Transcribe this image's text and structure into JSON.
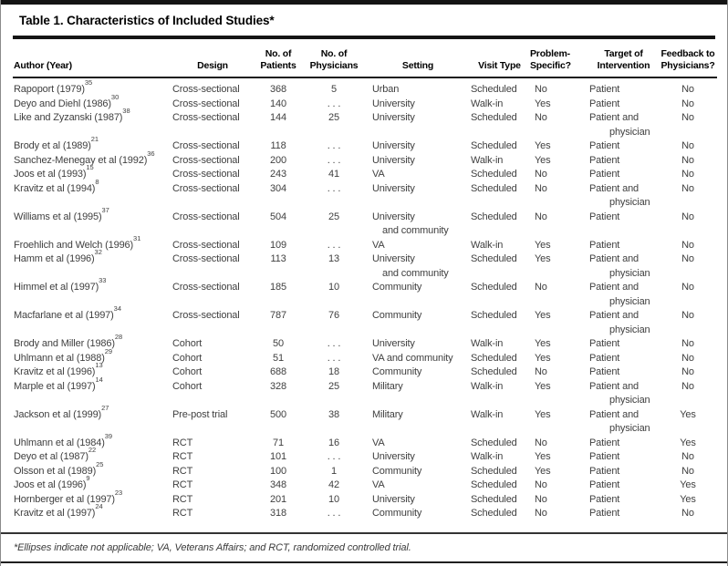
{
  "title": "Table 1. Characteristics of Included Studies*",
  "columns": {
    "author": "Author (Year)",
    "design": "Design",
    "patients": "No. of\nPatients",
    "physicians": "No. of\nPhysicians",
    "setting": "Setting",
    "visit_type": "Visit Type",
    "problem_specific": "Problem-\nSpecific?",
    "target": "Target of\nIntervention",
    "feedback": "Feedback to\nPhysicians?"
  },
  "ellipsis": ". . .",
  "rows": [
    {
      "author": "Rapoport (1979)",
      "ref": "35",
      "design": "Cross-sectional",
      "patients": "368",
      "physicians": "5",
      "setting": "Urban",
      "visit_type": "Scheduled",
      "problem_specific": "No",
      "target": "Patient",
      "feedback": "No"
    },
    {
      "author": "Deyo and Diehl (1986)",
      "ref": "30",
      "design": "Cross-sectional",
      "patients": "140",
      "physicians": ". . .",
      "setting": "University",
      "visit_type": "Walk-in",
      "problem_specific": "Yes",
      "target": "Patient",
      "feedback": "No"
    },
    {
      "author": "Like and Zyzanski (1987)",
      "ref": "38",
      "design": "Cross-sectional",
      "patients": "144",
      "physicians": "25",
      "setting": "University",
      "visit_type": "Scheduled",
      "problem_specific": "No",
      "target": "Patient and\nphysician",
      "feedback": "No"
    },
    {
      "author": "Brody et al (1989)",
      "ref": "21",
      "design": "Cross-sectional",
      "patients": "118",
      "physicians": ". . .",
      "setting": "University",
      "visit_type": "Scheduled",
      "problem_specific": "Yes",
      "target": "Patient",
      "feedback": "No"
    },
    {
      "author": "Sanchez-Menegay et al (1992)",
      "ref": "36",
      "design": "Cross-sectional",
      "patients": "200",
      "physicians": ". . .",
      "setting": "University",
      "visit_type": "Walk-in",
      "problem_specific": "Yes",
      "target": "Patient",
      "feedback": "No"
    },
    {
      "author": "Joos et al (1993)",
      "ref": "15",
      "design": "Cross-sectional",
      "patients": "243",
      "physicians": "41",
      "setting": "VA",
      "visit_type": "Scheduled",
      "problem_specific": "No",
      "target": "Patient",
      "feedback": "No"
    },
    {
      "author": "Kravitz et al (1994)",
      "ref": "8",
      "design": "Cross-sectional",
      "patients": "304",
      "physicians": ". . .",
      "setting": "University",
      "visit_type": "Scheduled",
      "problem_specific": "No",
      "target": "Patient and\nphysician",
      "feedback": "No"
    },
    {
      "author": "Williams et al (1995)",
      "ref": "37",
      "design": "Cross-sectional",
      "patients": "504",
      "physicians": "25",
      "setting": "University\nand community",
      "visit_type": "Scheduled",
      "problem_specific": "No",
      "target": "Patient",
      "feedback": "No"
    },
    {
      "author": "Froehlich and Welch (1996)",
      "ref": "31",
      "design": "Cross-sectional",
      "patients": "109",
      "physicians": ". . .",
      "setting": "VA",
      "visit_type": "Walk-in",
      "problem_specific": "Yes",
      "target": "Patient",
      "feedback": "No"
    },
    {
      "author": "Hamm et al (1996)",
      "ref": "32",
      "design": "Cross-sectional",
      "patients": "113",
      "physicians": "13",
      "setting": "University\nand community",
      "visit_type": "Scheduled",
      "problem_specific": "Yes",
      "target": "Patient and\nphysician",
      "feedback": "No"
    },
    {
      "author": "Himmel et al (1997)",
      "ref": "33",
      "design": "Cross-sectional",
      "patients": "185",
      "physicians": "10",
      "setting": "Community",
      "visit_type": "Scheduled",
      "problem_specific": "No",
      "target": "Patient and\nphysician",
      "feedback": "No"
    },
    {
      "author": "Macfarlane et al (1997)",
      "ref": "34",
      "design": "Cross-sectional",
      "patients": "787",
      "physicians": "76",
      "setting": "Community",
      "visit_type": "Scheduled",
      "problem_specific": "Yes",
      "target": "Patient and\nphysician",
      "feedback": "No"
    },
    {
      "author": "Brody and Miller (1986)",
      "ref": "28",
      "design": "Cohort",
      "patients": "50",
      "physicians": ". . .",
      "setting": "University",
      "visit_type": "Walk-in",
      "problem_specific": "Yes",
      "target": "Patient",
      "feedback": "No"
    },
    {
      "author": "Uhlmann et al (1988)",
      "ref": "29",
      "design": "Cohort",
      "patients": "51",
      "physicians": ". . .",
      "setting": "VA and community",
      "visit_type": "Scheduled",
      "problem_specific": "Yes",
      "target": "Patient",
      "feedback": "No"
    },
    {
      "author": "Kravitz et al (1996)",
      "ref": "13",
      "design": "Cohort",
      "patients": "688",
      "physicians": "18",
      "setting": "Community",
      "visit_type": "Scheduled",
      "problem_specific": "No",
      "target": "Patient",
      "feedback": "No"
    },
    {
      "author": "Marple et al (1997)",
      "ref": "14",
      "design": "Cohort",
      "patients": "328",
      "physicians": "25",
      "setting": "Military",
      "visit_type": "Walk-in",
      "problem_specific": "Yes",
      "target": "Patient and\nphysician",
      "feedback": "No"
    },
    {
      "author": "Jackson et al (1999)",
      "ref": "27",
      "design": "Pre-post trial",
      "patients": "500",
      "physicians": "38",
      "setting": "Military",
      "visit_type": "Walk-in",
      "problem_specific": "Yes",
      "target": "Patient and\nphysician",
      "feedback": "Yes"
    },
    {
      "author": "Uhlmann et al (1984)",
      "ref": "39",
      "design": "RCT",
      "patients": "71",
      "physicians": "16",
      "setting": "VA",
      "visit_type": "Scheduled",
      "problem_specific": "No",
      "target": "Patient",
      "feedback": "Yes"
    },
    {
      "author": "Deyo et al (1987)",
      "ref": "22",
      "design": "RCT",
      "patients": "101",
      "physicians": ". . .",
      "setting": "University",
      "visit_type": "Walk-in",
      "problem_specific": "Yes",
      "target": "Patient",
      "feedback": "No"
    },
    {
      "author": "Olsson et al (1989)",
      "ref": "25",
      "design": "RCT",
      "patients": "100",
      "physicians": "1",
      "setting": "Community",
      "visit_type": "Scheduled",
      "problem_specific": "Yes",
      "target": "Patient",
      "feedback": "No"
    },
    {
      "author": "Joos et al (1996)",
      "ref": "9",
      "design": "RCT",
      "patients": "348",
      "physicians": "42",
      "setting": "VA",
      "visit_type": "Scheduled",
      "problem_specific": "No",
      "target": "Patient",
      "feedback": "Yes"
    },
    {
      "author": "Hornberger et al (1997)",
      "ref": "23",
      "design": "RCT",
      "patients": "201",
      "physicians": "10",
      "setting": "University",
      "visit_type": "Scheduled",
      "problem_specific": "No",
      "target": "Patient",
      "feedback": "Yes"
    },
    {
      "author": "Kravitz et al (1997)",
      "ref": "24",
      "design": "RCT",
      "patients": "318",
      "physicians": ". . .",
      "setting": "Community",
      "visit_type": "Scheduled",
      "problem_specific": "No",
      "target": "Patient",
      "feedback": "No"
    }
  ],
  "footnote": "*Ellipses indicate not applicable; VA, Veterans Affairs; and RCT, randomized controlled trial.",
  "colors": {
    "rule": "#141414",
    "heading_text": "#000000",
    "body_text": "#404040",
    "background": "#ffffff"
  }
}
